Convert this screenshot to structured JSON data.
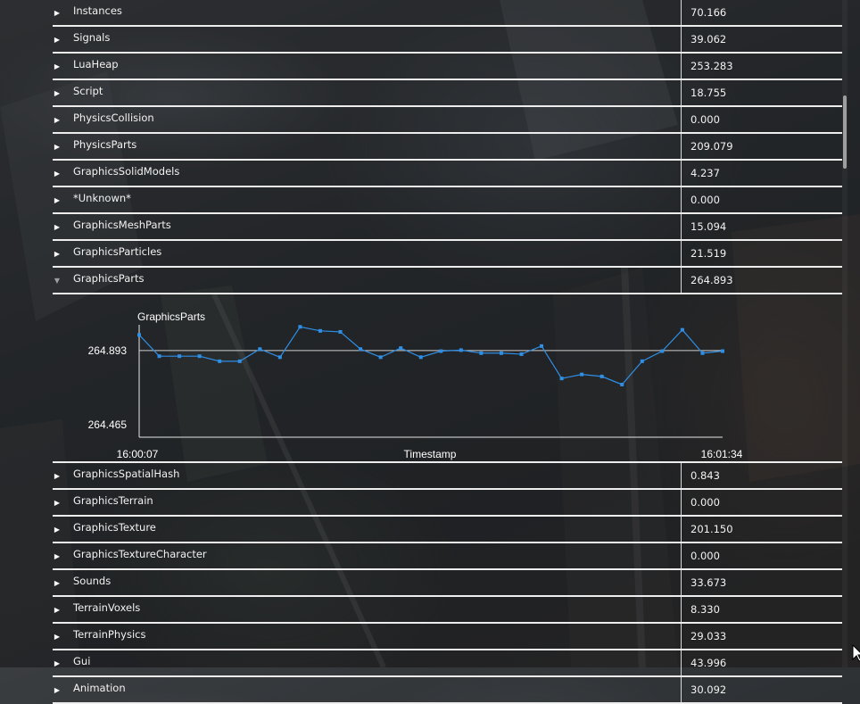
{
  "rows_top": [
    {
      "name": "Instances",
      "value": "70.166"
    },
    {
      "name": "Signals",
      "value": "39.062"
    },
    {
      "name": "LuaHeap",
      "value": "253.283"
    },
    {
      "name": "Script",
      "value": "18.755"
    },
    {
      "name": "PhysicsCollision",
      "value": "0.000"
    },
    {
      "name": "PhysicsParts",
      "value": "209.079"
    },
    {
      "name": "GraphicsSolidModels",
      "value": "4.237"
    },
    {
      "name": "*Unknown*",
      "value": "0.000"
    },
    {
      "name": "GraphicsMeshParts",
      "value": "15.094"
    },
    {
      "name": "GraphicsParticles",
      "value": "21.519"
    },
    {
      "name": "GraphicsParts",
      "value": "264.893",
      "expanded": true
    }
  ],
  "rows_bottom": [
    {
      "name": "GraphicsSpatialHash",
      "value": "0.843"
    },
    {
      "name": "GraphicsTerrain",
      "value": "0.000"
    },
    {
      "name": "GraphicsTexture",
      "value": "201.150"
    },
    {
      "name": "GraphicsTextureCharacter",
      "value": "0.000"
    },
    {
      "name": "Sounds",
      "value": "33.673"
    },
    {
      "name": "TerrainVoxels",
      "value": "8.330"
    },
    {
      "name": "TerrainPhysics",
      "value": "29.033"
    },
    {
      "name": "Gui",
      "value": "43.996"
    },
    {
      "name": "Animation",
      "value": "30.092"
    }
  ],
  "icons": {
    "collapsed": "triangle-right-icon",
    "expanded": "triangle-down-icon"
  },
  "chart_data": {
    "type": "line",
    "title": "GraphicsParts",
    "xlabel": "Timestamp",
    "ylabel": "",
    "x_tick_labels": [
      "16:00:07",
      "16:01:34"
    ],
    "y_tick_labels": [
      "264.893",
      "264.465"
    ],
    "series": [
      {
        "values": [
          264.97,
          264.865,
          264.865,
          264.865,
          264.84,
          264.84,
          264.9,
          264.86,
          265.01,
          264.99,
          264.985,
          264.9,
          264.86,
          264.905,
          264.86,
          264.89,
          264.895,
          264.88,
          264.88,
          264.875,
          264.915,
          264.755,
          264.775,
          264.765,
          264.725,
          264.84,
          264.89,
          264.995,
          264.88,
          264.89
        ],
        "color": "#2f8fe6"
      }
    ],
    "ylim": [
      264.465,
      265.02
    ],
    "reference_line": 264.893,
    "grid": false,
    "line_color": "#2f8fe6",
    "ref_line_color": "#cfcfcf"
  }
}
